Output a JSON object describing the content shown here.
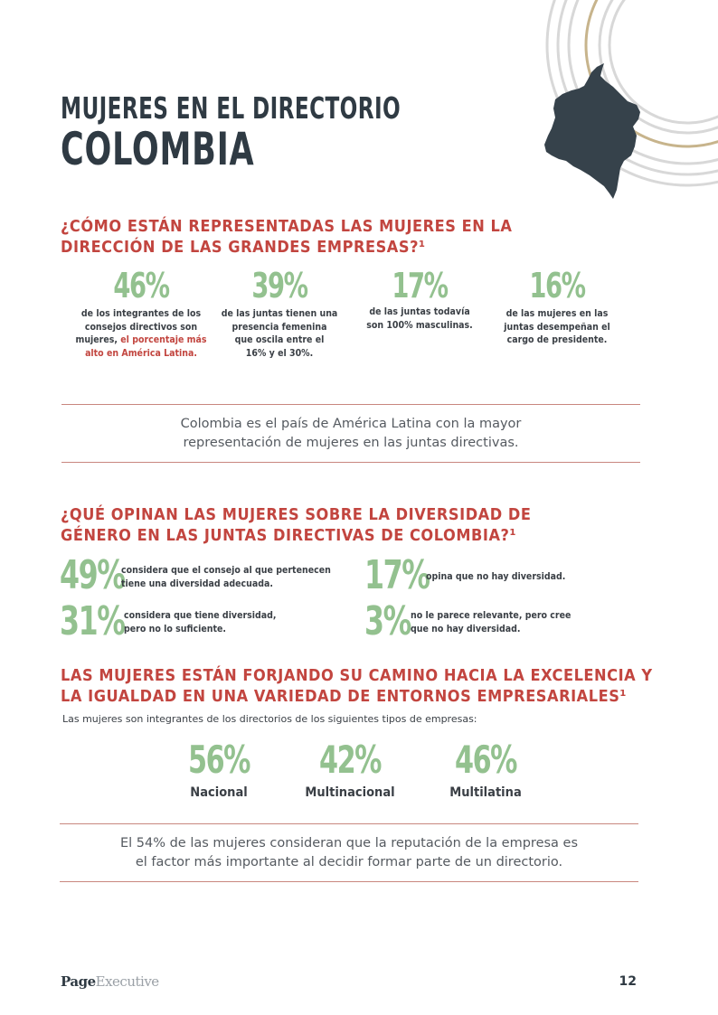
{
  "header": {
    "title_line1": "MUJERES EN EL DIRECTORIO",
    "title_line2": "COLOMBIA"
  },
  "section1": {
    "title_line1": "¿CÓMO ESTÁN REPRESENTADAS LAS MUJERES EN LA",
    "title_line2": "DIRECCIÓN DE LAS GRANDES EMPRESAS?¹",
    "stats": [
      {
        "value": "46%",
        "desc_lines": [
          "de los integrantes de los",
          "consejos directivos son"
        ],
        "desc_mixed_plain": "mujeres, ",
        "desc_mixed_highlight": "el porcentaje más",
        "desc_highlight_line": "alto en América Latina."
      },
      {
        "value": "39%",
        "desc_lines": [
          "de las juntas tienen una",
          "presencia femenina",
          "que oscila entre el",
          "16% y el 30%."
        ]
      },
      {
        "value": "17%",
        "desc_lines": [
          "de las juntas todavía",
          "son 100% masculinas."
        ]
      },
      {
        "value": "16%",
        "desc_lines": [
          "de las mujeres en las",
          "juntas desempeñan el",
          "cargo de presidente."
        ]
      }
    ],
    "callout_line1": "Colombia es el país de América Latina con la mayor",
    "callout_line2": "representación de mujeres en las juntas directivas."
  },
  "section2": {
    "title_line1": "¿QUÉ OPINAN LAS MUJERES SOBRE LA DIVERSIDAD DE",
    "title_line2": "GÉNERO EN LAS JUNTAS DIRECTIVAS DE COLOMBIA?¹",
    "opinions": [
      {
        "value": "49%",
        "line1": "considera que el consejo al que pertenecen",
        "line2": "tiene una diversidad adecuada."
      },
      {
        "value": "17%",
        "line1": "opina que no hay diversidad.",
        "line2": ""
      },
      {
        "value": "31%",
        "line1": "considera que tiene diversidad,",
        "line2": "pero no lo suficiente."
      },
      {
        "value": "3%",
        "line1": "no le parece relevante, pero cree",
        "line2": "que no hay diversidad."
      }
    ]
  },
  "section3": {
    "title_line1": "LAS MUJERES ESTÁN FORJANDO SU CAMINO HACIA LA EXCELENCIA Y",
    "title_line2": "LA IGUALDAD EN UNA VARIEDAD DE ENTORNOS EMPRESARIALES¹",
    "intro": "Las mujeres son integrantes de los directorios de los siguientes tipos de empresas:",
    "types": [
      {
        "value": "56%",
        "label": "Nacional"
      },
      {
        "value": "42%",
        "label": "Multinacional"
      },
      {
        "value": "46%",
        "label": "Multilatina"
      }
    ],
    "callout_line1": "El 54% de las mujeres consideran que la reputación de la empresa es",
    "callout_line2": "el factor más importante al decidir formar parte de un directorio."
  },
  "footer": {
    "logo_part1": "Page",
    "logo_part2": "Executive",
    "page_number": "12"
  },
  "colors": {
    "accent_red": "#c2453f",
    "stat_green": "#93c18f",
    "heading_dark": "#2f3a43",
    "map_fill": "#36424b",
    "ring_gold": "#c7b48c",
    "ring_gray": "#d6d6d6"
  },
  "icons": {
    "map": "colombia-map-icon",
    "rings": "decorative-rings"
  }
}
